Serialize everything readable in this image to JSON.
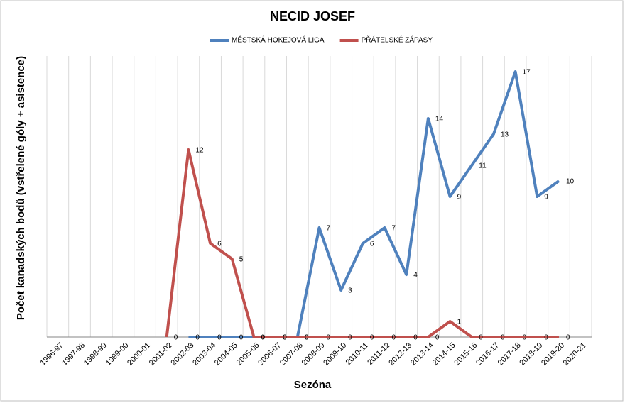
{
  "chart_data": {
    "type": "line",
    "title": "NECID JOSEF",
    "x_label": "Sezóna",
    "y_label": "Počet kanadských bodů (vstřelené góly + asistence)",
    "categories": [
      "1996-97",
      "1997-98",
      "1998-99",
      "1999-00",
      "2000-01",
      "2001-02",
      "2002-03",
      "2003-04",
      "2004-05",
      "2005-06",
      "2006-07",
      "2007-08",
      "2008-09",
      "2009-10",
      "2010-11",
      "2011-12",
      "2012-13",
      "2013-14",
      "2014-15",
      "2015-16",
      "2016-17",
      "2017-18",
      "2018-19",
      "2019-20",
      "2020-21"
    ],
    "series": [
      {
        "name": "MĚSTSKÁ HOKEJOVÁ LIGA",
        "color": "#4f81bd",
        "values": [
          null,
          null,
          null,
          null,
          null,
          null,
          0,
          0,
          0,
          0,
          0,
          0,
          7,
          3,
          6,
          7,
          4,
          14,
          9,
          11,
          13,
          17,
          9,
          10,
          null
        ]
      },
      {
        "name": "PŘÁTELSKÉ ZÁPASY",
        "color": "#c0504d",
        "values": [
          null,
          null,
          null,
          null,
          null,
          0,
          12,
          6,
          5,
          0,
          0,
          0,
          0,
          0,
          0,
          0,
          0,
          0,
          1,
          0,
          0,
          0,
          0,
          0,
          null
        ]
      }
    ],
    "ylim": [
      0,
      18
    ],
    "grid": true,
    "legend": "top"
  }
}
